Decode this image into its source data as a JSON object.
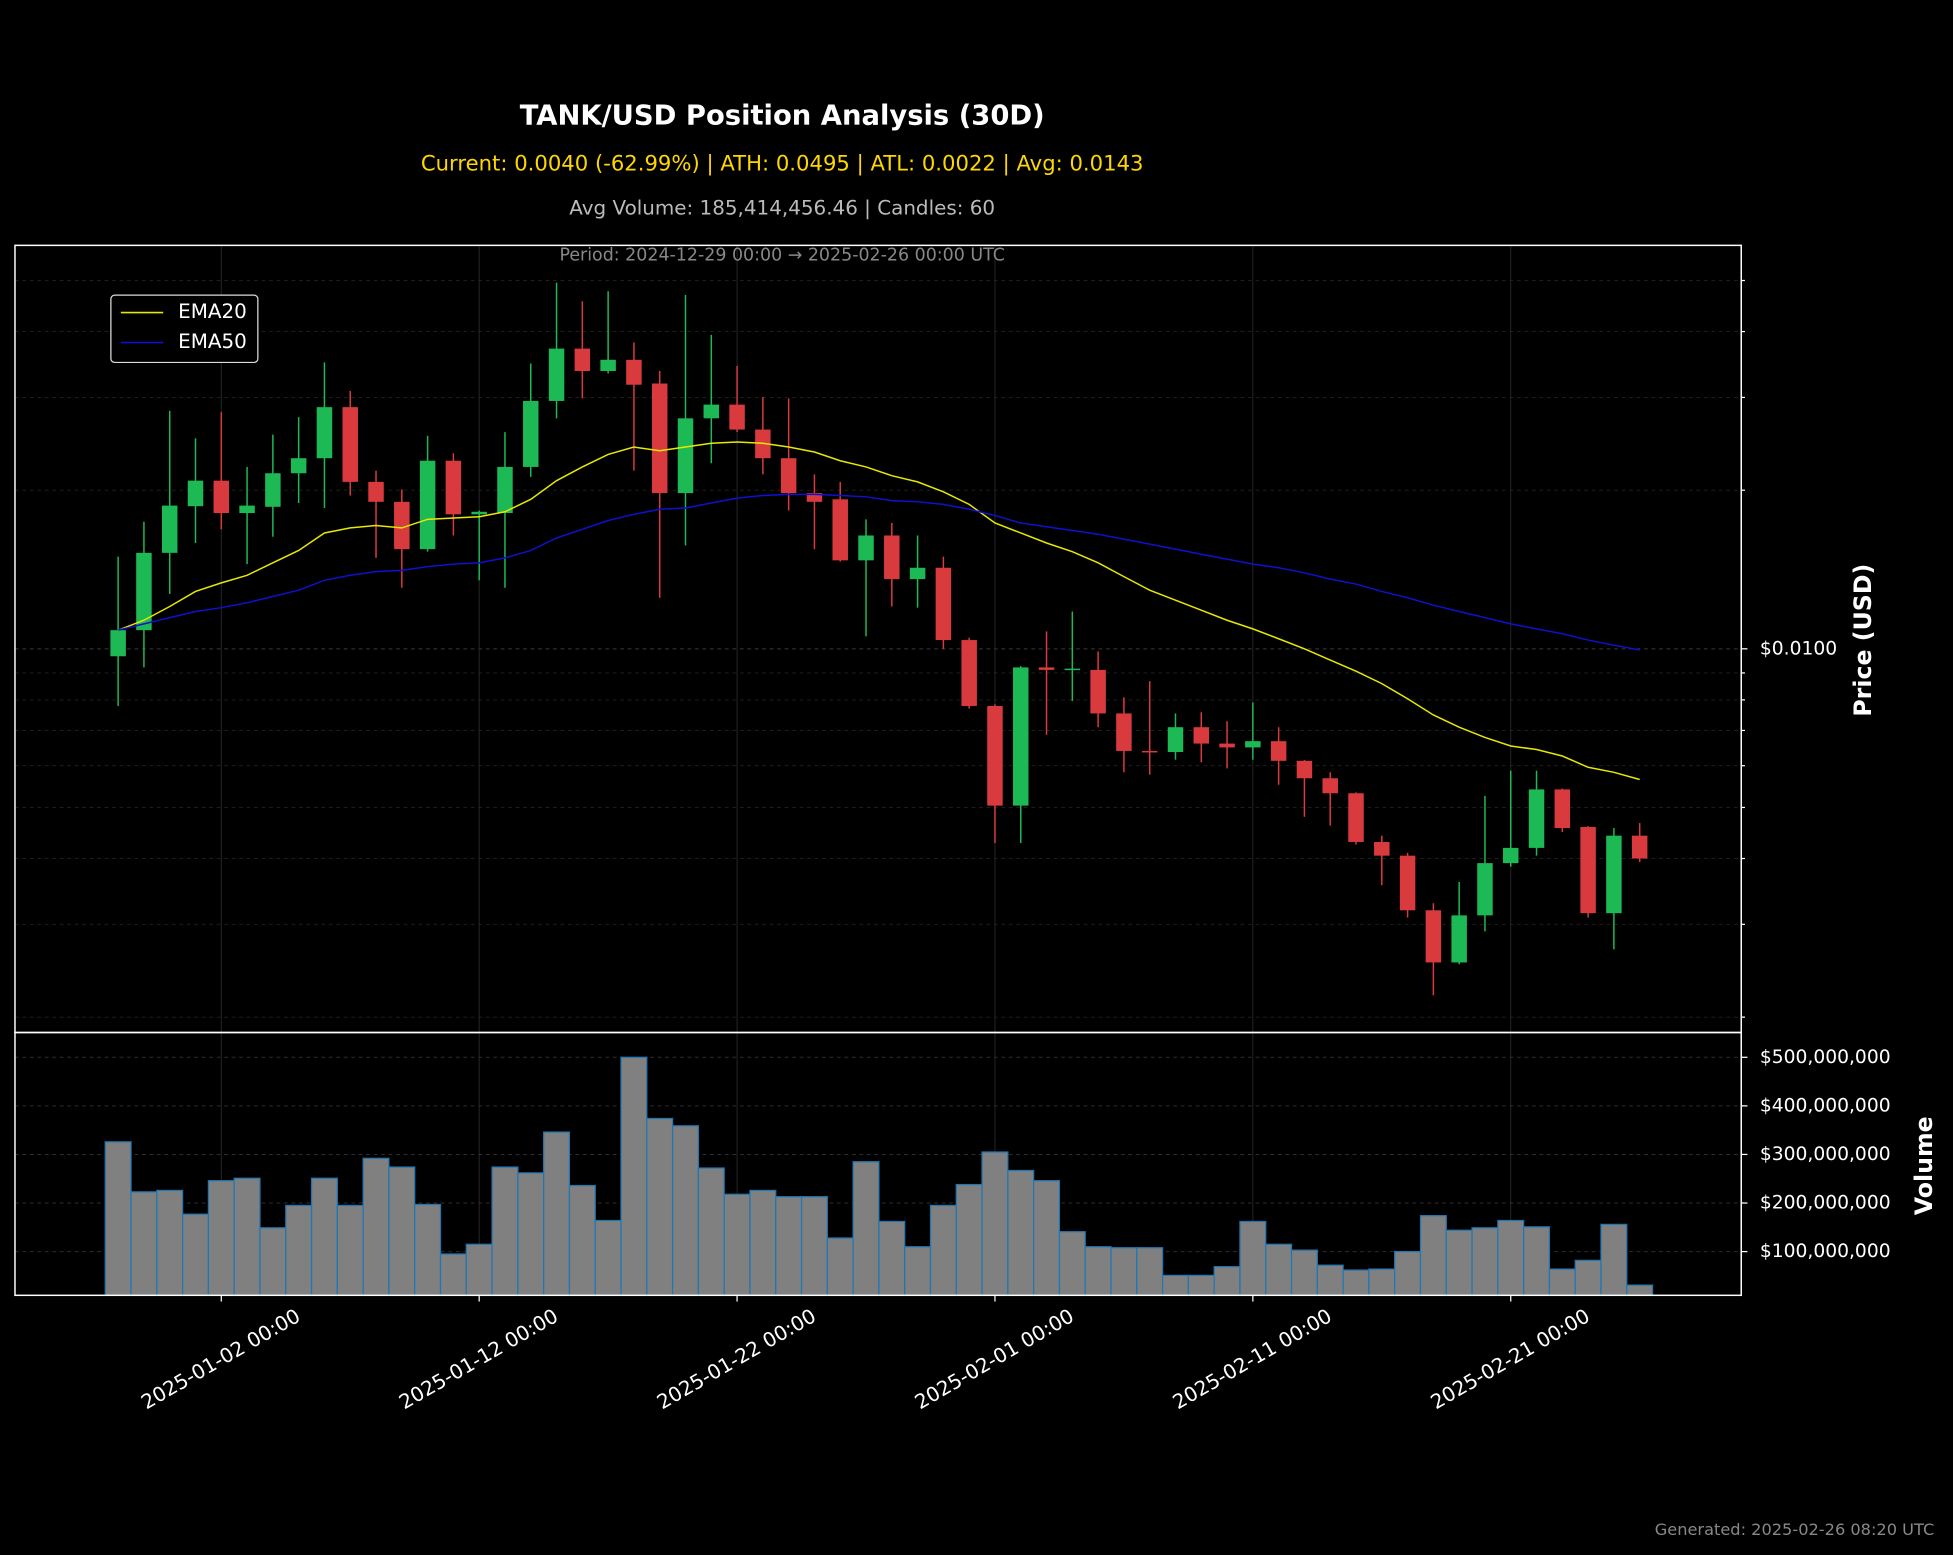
{
  "chart_data": {
    "type": "candlestick",
    "title": "TANK/USD Position Analysis (30D)",
    "subtitle": "Current: 0.0040 (-62.99%) | ATH: 0.0495 | ATL: 0.0022 | Avg: 0.0143",
    "stats": "Avg Volume: 185,414,456.46 | Candles: 60",
    "period": "Period: 2024-12-29 00:00 → 2025-02-26 00:00 UTC",
    "footnote": "Generated: 2025-02-26 08:20 UTC",
    "ylabel": "Price (USD)",
    "log_scale": true,
    "grid": true,
    "legend_loc": "upper left",
    "up_color": "#1db954",
    "down_color": "#d93a3e",
    "x": [
      "2024-12-29 00:00",
      "2024-12-30 00:00",
      "2024-12-31 00:00",
      "2025-01-01 00:00",
      "2025-01-02 00:00",
      "2025-01-03 00:00",
      "2025-01-04 00:00",
      "2025-01-05 00:00",
      "2025-01-06 00:00",
      "2025-01-07 00:00",
      "2025-01-08 00:00",
      "2025-01-09 00:00",
      "2025-01-10 00:00",
      "2025-01-11 00:00",
      "2025-01-12 00:00",
      "2025-01-13 00:00",
      "2025-01-14 00:00",
      "2025-01-15 00:00",
      "2025-01-16 00:00",
      "2025-01-17 00:00",
      "2025-01-18 00:00",
      "2025-01-19 00:00",
      "2025-01-20 00:00",
      "2025-01-21 00:00",
      "2025-01-22 00:00",
      "2025-01-23 00:00",
      "2025-01-24 00:00",
      "2025-01-25 00:00",
      "2025-01-26 00:00",
      "2025-01-27 00:00",
      "2025-01-28 00:00",
      "2025-01-29 00:00",
      "2025-01-30 00:00",
      "2025-01-31 00:00",
      "2025-02-01 00:00",
      "2025-02-02 00:00",
      "2025-02-03 00:00",
      "2025-02-04 00:00",
      "2025-02-05 00:00",
      "2025-02-06 00:00",
      "2025-02-07 00:00",
      "2025-02-08 00:00",
      "2025-02-09 00:00",
      "2025-02-10 00:00",
      "2025-02-11 00:00",
      "2025-02-12 00:00",
      "2025-02-13 00:00",
      "2025-02-14 00:00",
      "2025-02-15 00:00",
      "2025-02-16 00:00",
      "2025-02-17 00:00",
      "2025-02-18 00:00",
      "2025-02-19 00:00",
      "2025-02-20 00:00",
      "2025-02-21 00:00",
      "2025-02-22 00:00",
      "2025-02-23 00:00",
      "2025-02-24 00:00",
      "2025-02-25 00:00",
      "2025-02-26 00:00"
    ],
    "open": [
      0.00968,
      0.01085,
      0.01521,
      0.01865,
      0.02085,
      0.0181,
      0.0186,
      0.02154,
      0.023,
      0.02875,
      0.02074,
      0.01901,
      0.01546,
      0.02275,
      0.018,
      0.0181,
      0.02214,
      0.02954,
      0.03713,
      0.03367,
      0.03536,
      0.03188,
      0.01975,
      0.02738,
      0.02907,
      0.02607,
      0.023,
      0.01975,
      0.01922,
      0.01472,
      0.01641,
      0.01356,
      0.01425,
      0.01039,
      0.00779,
      0.00504,
      0.00922,
      0.00912,
      0.00912,
      0.00754,
      0.0064,
      0.00637,
      0.0071,
      0.00661,
      0.0065,
      0.00668,
      0.00613,
      0.00568,
      0.00532,
      0.0043,
      0.00405,
      0.00319,
      0.00254,
      0.00312,
      0.00392,
      0.00419,
      0.00541,
      0.00459,
      0.00315,
      0.00442
    ],
    "high": [
      0.01496,
      0.01742,
      0.02828,
      0.02509,
      0.02813,
      0.02214,
      0.0255,
      0.02752,
      0.03497,
      0.03086,
      0.02178,
      0.02007,
      0.02537,
      0.0235,
      0.0183,
      0.02578,
      0.03478,
      0.0495,
      0.04567,
      0.0477,
      0.03816,
      0.03367,
      0.04693,
      0.03942,
      0.03441,
      0.03003,
      0.02987,
      0.02143,
      0.02074,
      0.01761,
      0.01733,
      0.01641,
      0.01496,
      0.0105,
      0.00785,
      0.00927,
      0.01079,
      0.01177,
      0.00989,
      0.00809,
      0.00868,
      0.00754,
      0.00758,
      0.00729,
      0.00791,
      0.0071,
      0.00615,
      0.00583,
      0.00534,
      0.00442,
      0.0041,
      0.00329,
      0.00361,
      0.00526,
      0.00587,
      0.00587,
      0.00543,
      0.00461,
      0.00457,
      0.00467
    ],
    "low": [
      0.00779,
      0.00922,
      0.01271,
      0.01588,
      0.01686,
      0.01448,
      0.01632,
      0.01891,
      0.0185,
      0.01954,
      0.01488,
      0.01306,
      0.01529,
      0.01641,
      0.01349,
      0.01306,
      0.0212,
      0.02738,
      0.02987,
      0.0333,
      0.02178,
      0.0125,
      0.01571,
      0.0225,
      0.02578,
      0.02143,
      0.0183,
      0.01546,
      0.01464,
      0.01056,
      0.01203,
      0.01197,
      0.01,
      0.0077,
      0.00428,
      0.00428,
      0.00687,
      0.00796,
      0.0071,
      0.00583,
      0.00577,
      0.00616,
      0.00609,
      0.00593,
      0.00616,
      0.00552,
      0.0048,
      0.00462,
      0.00425,
      0.00356,
      0.00309,
      0.0022,
      0.00252,
      0.00291,
      0.00386,
      0.00405,
      0.00449,
      0.00309,
      0.00269,
      0.00394
    ],
    "close": [
      0.01085,
      0.01521,
      0.0187,
      0.02085,
      0.0181,
      0.0187,
      0.02154,
      0.023,
      0.02875,
      0.02074,
      0.01901,
      0.01546,
      0.02275,
      0.018,
      0.0182,
      0.02214,
      0.02954,
      0.03713,
      0.03367,
      0.03536,
      0.03171,
      0.01975,
      0.02738,
      0.02907,
      0.02607,
      0.023,
      0.01975,
      0.01901,
      0.01472,
      0.01641,
      0.01356,
      0.01425,
      0.01039,
      0.00779,
      0.00504,
      0.00922,
      0.00912,
      0.00917,
      0.00754,
      0.0064,
      0.00637,
      0.0071,
      0.00661,
      0.0065,
      0.00668,
      0.00613,
      0.00568,
      0.00532,
      0.0043,
      0.00405,
      0.00319,
      0.00254,
      0.00312,
      0.00392,
      0.00419,
      0.00541,
      0.00457,
      0.00315,
      0.00442,
      0.004
    ],
    "series": [
      {
        "name": "EMA20",
        "color": "#e8e800",
        "values": [
          0.01085,
          0.01133,
          0.01203,
          0.01285,
          0.01334,
          0.01379,
          0.01456,
          0.01537,
          0.01659,
          0.01696,
          0.01714,
          0.01696,
          0.01761,
          0.01771,
          0.01781,
          0.0182,
          0.01922,
          0.02085,
          0.02214,
          0.02338,
          0.02415,
          0.02376,
          0.02415,
          0.02455,
          0.02469,
          0.02455,
          0.02415,
          0.02363,
          0.02275,
          0.02214,
          0.02131,
          0.02074,
          0.01986,
          0.0188,
          0.01733,
          0.01659,
          0.01588,
          0.01529,
          0.01456,
          0.01371,
          0.01292,
          0.01237,
          0.01184,
          0.01133,
          0.01091,
          0.01045,
          0.01,
          0.00952,
          0.00907,
          0.00859,
          0.00804,
          0.00749,
          0.0071,
          0.00679,
          0.00654,
          0.00644,
          0.00626,
          0.00596,
          0.00583,
          0.00565
        ]
      },
      {
        "name": "EMA50",
        "color": "#1010d0",
        "values": [
          0.01085,
          0.01115,
          0.01146,
          0.01177,
          0.01197,
          0.01223,
          0.01257,
          0.01292,
          0.01349,
          0.01379,
          0.01401,
          0.01409,
          0.01432,
          0.01448,
          0.01456,
          0.01488,
          0.01537,
          0.01623,
          0.01686,
          0.01752,
          0.018,
          0.0184,
          0.0185,
          0.01891,
          0.01932,
          0.01954,
          0.01964,
          0.01964,
          0.01954,
          0.01943,
          0.01911,
          0.01901,
          0.0188,
          0.0184,
          0.01791,
          0.01733,
          0.01705,
          0.01677,
          0.0165,
          0.01615,
          0.0158,
          0.01546,
          0.01512,
          0.0148,
          0.01448,
          0.01425,
          0.01394,
          0.01356,
          0.01327,
          0.01285,
          0.0125,
          0.0121,
          0.01177,
          0.01146,
          0.01115,
          0.01091,
          0.01068,
          0.01039,
          0.01016,
          0.00995
        ]
      }
    ],
    "xlim": [
      "2024-12-25 00:00",
      "2025-03-01 22:30"
    ],
    "xticks": [
      "2025-01-02 00:00",
      "2025-01-12 00:00",
      "2025-01-22 00:00",
      "2025-02-01 00:00",
      "2025-02-11 00:00",
      "2025-02-21 00:00"
    ],
    "ylim": [
      0.00187,
      0.0583
    ],
    "yticks": [
      {
        "value": 0.01,
        "label": "$0.0100"
      }
    ],
    "yminor_ticks": [
      0.002,
      0.003,
      0.004,
      0.005,
      0.006,
      0.007,
      0.008,
      0.009,
      0.02,
      0.03,
      0.04,
      0.05
    ],
    "volume": {
      "ylabel": "Volume",
      "color": "#808080",
      "edgecolor": "#1f77b4",
      "ylim": [
        10000000,
        551000000
      ],
      "yticks": [
        {
          "value": 100000000,
          "label": "$100,000,000"
        },
        {
          "value": 200000000,
          "label": "$200,000,000"
        },
        {
          "value": 300000000,
          "label": "$300,000,000"
        },
        {
          "value": 400000000,
          "label": "$400,000,000"
        },
        {
          "value": 500000000,
          "label": "$500,000,000"
        }
      ],
      "values": [
        326000000,
        223000000,
        226000000,
        177000000,
        246000000,
        251000000,
        149000000,
        195000000,
        251000000,
        195000000,
        292000000,
        274000000,
        197000000,
        95000000,
        115000000,
        274000000,
        262000000,
        346000000,
        236000000,
        164000000,
        500000000,
        374000000,
        359000000,
        272000000,
        218000000,
        226000000,
        213000000,
        213000000,
        128000000,
        285000000,
        162000000,
        110000000,
        195000000,
        238000000,
        305000000,
        267000000,
        246000000,
        141000000,
        110000000,
        108000000,
        108000000,
        51000000,
        51000000,
        69000000,
        162000000,
        115000000,
        103000000,
        72000000,
        62000000,
        64000000,
        100000000,
        174000000,
        144000000,
        149000000,
        164000000,
        151000000,
        64000000,
        82000000,
        156000000,
        31000000
      ]
    }
  }
}
